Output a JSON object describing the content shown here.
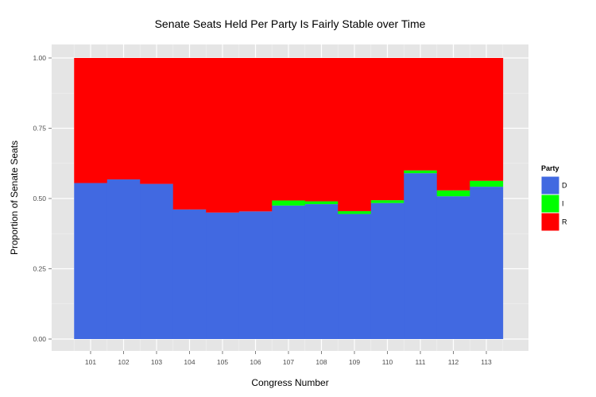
{
  "chart_data": {
    "type": "bar",
    "stacked": true,
    "title": "Senate Seats Held Per Party Is Fairly Stable over Time",
    "xlabel": "Congress Number",
    "ylabel": "Proportion of Senate Seats",
    "categories": [
      "101",
      "102",
      "103",
      "104",
      "105",
      "106",
      "107",
      "108",
      "109",
      "110",
      "111",
      "112",
      "113"
    ],
    "ylim": [
      0,
      1
    ],
    "yticks": [
      "0.00",
      "0.25",
      "0.50",
      "0.75",
      "1.00"
    ],
    "ytick_values": [
      0,
      0.25,
      0.5,
      0.75,
      1
    ],
    "grid": true,
    "legend": {
      "title": "Party",
      "position": "right"
    },
    "series": [
      {
        "name": "D",
        "color": "#4169E1",
        "values": [
          0.555,
          0.568,
          0.552,
          0.461,
          0.45,
          0.454,
          0.475,
          0.48,
          0.445,
          0.484,
          0.59,
          0.508,
          0.542
        ]
      },
      {
        "name": "I",
        "color": "#00FF00",
        "values": [
          0,
          0,
          0,
          0,
          0,
          0,
          0.018,
          0.01,
          0.01,
          0.01,
          0.01,
          0.021,
          0.021
        ]
      },
      {
        "name": "R",
        "color": "#FF0000",
        "values": [
          0.445,
          0.432,
          0.448,
          0.539,
          0.55,
          0.546,
          0.507,
          0.51,
          0.545,
          0.506,
          0.4,
          0.471,
          0.437
        ]
      }
    ]
  }
}
